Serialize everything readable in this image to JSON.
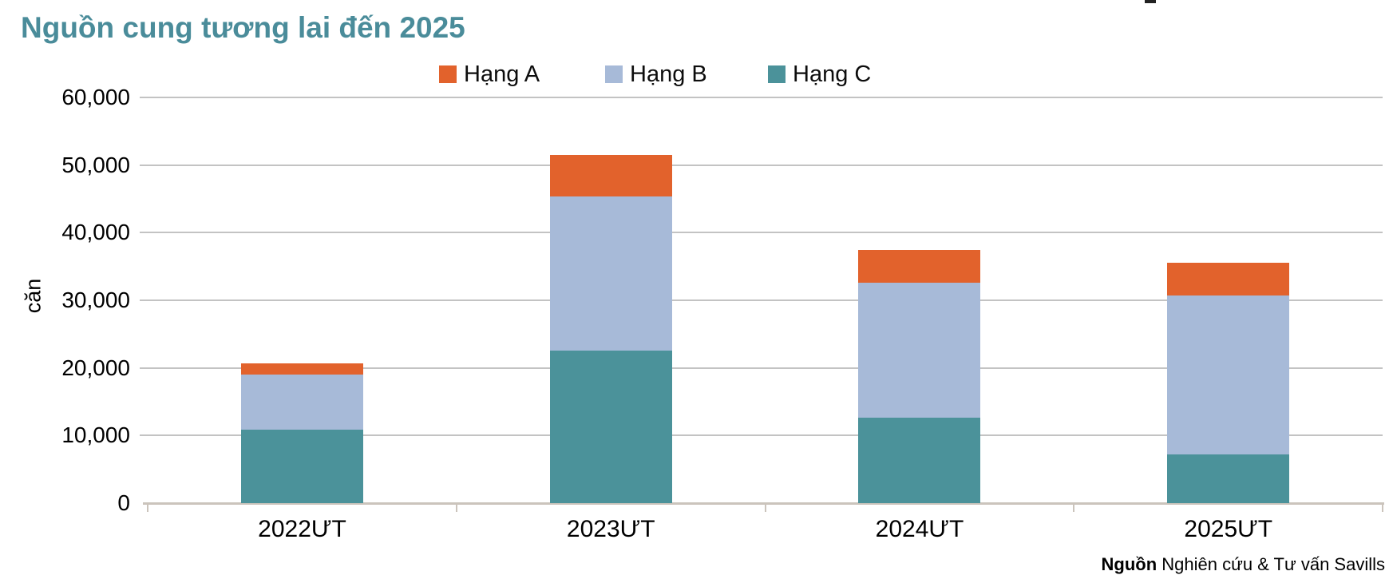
{
  "title": "Nguồn cung tương lai đến 2025",
  "y_axis": {
    "label": "căn",
    "tick_labels": [
      "0",
      "10,000",
      "20,000",
      "30,000",
      "40,000",
      "50,000",
      "60,000"
    ]
  },
  "source": {
    "label_bold": "Nguồn",
    "label_rest": " Nghiên cứu & Tư vấn Savills"
  },
  "colors": {
    "title": "#4A8C9A",
    "gridline": "#C3C3C3",
    "axis_line": "#CBC4BC",
    "hang_a": "#E2622C",
    "hang_b": "#A7BAD8",
    "hang_c": "#4B929A"
  },
  "chart_data": {
    "type": "bar",
    "stacked": true,
    "title": "Nguồn cung tương lai đến 2025",
    "xlabel": "",
    "ylabel": "căn",
    "ylim": [
      0,
      60000
    ],
    "ytick_step": 10000,
    "grid": "horizontal",
    "legend_position": "top",
    "categories": [
      "2022ƯT",
      "2023ƯT",
      "2024ƯT",
      "2025ƯT"
    ],
    "series": [
      {
        "name": "Hạng A",
        "color": "#E2622C",
        "values": [
          1700,
          6100,
          4800,
          4900
        ]
      },
      {
        "name": "Hạng B",
        "color": "#A7BAD8",
        "values": [
          8100,
          22800,
          20000,
          23500
        ]
      },
      {
        "name": "Hạng C",
        "color": "#4B929A",
        "values": [
          10900,
          22600,
          12600,
          7200
        ]
      }
    ],
    "stack_order_bottom_to_top": [
      "Hạng C",
      "Hạng B",
      "Hạng A"
    ],
    "totals": [
      20700,
      51500,
      37400,
      35600
    ]
  }
}
